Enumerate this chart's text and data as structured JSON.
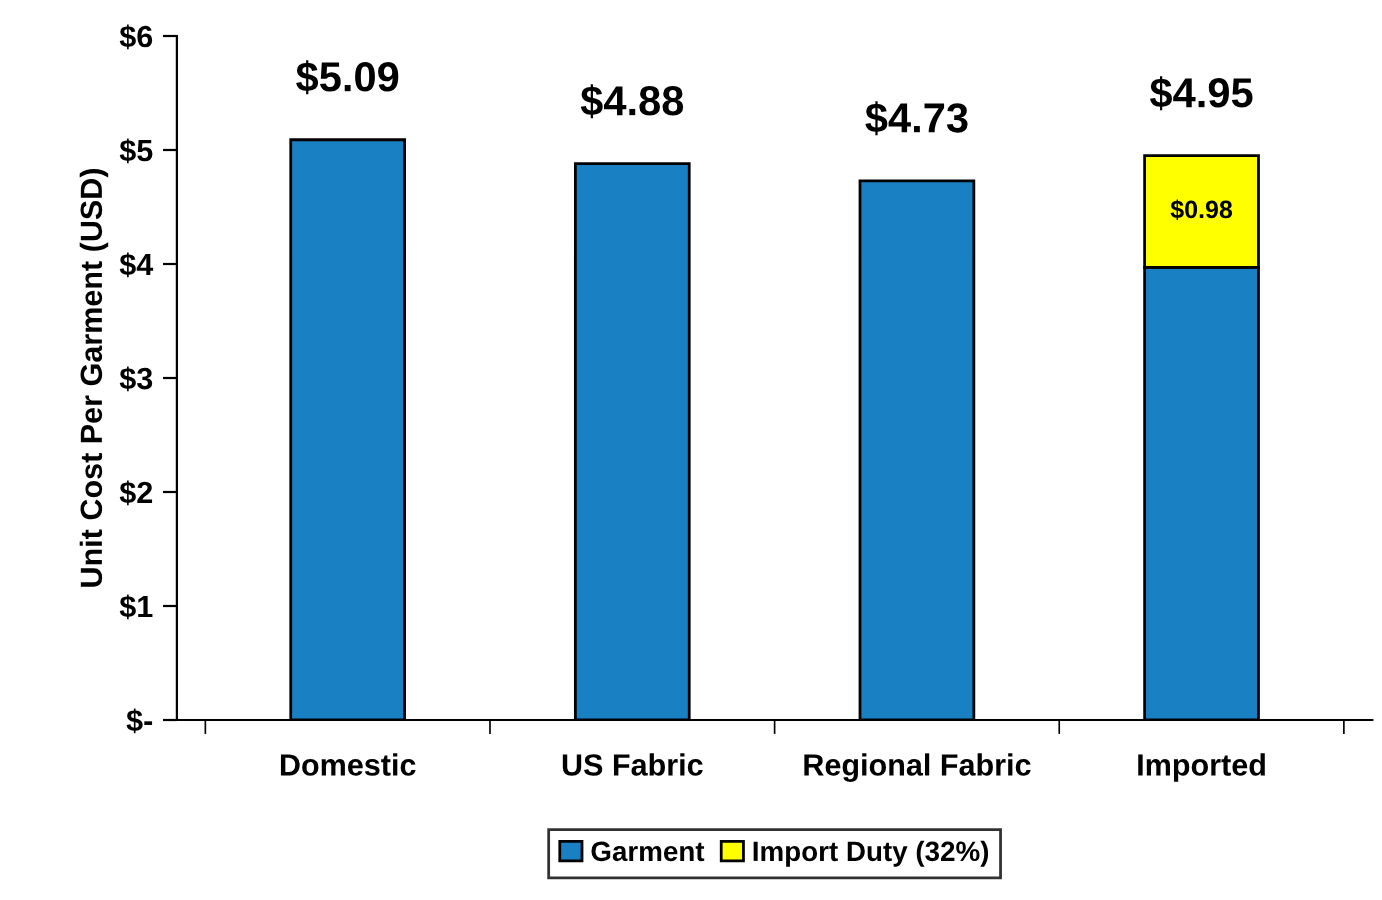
{
  "chart_data": {
    "type": "bar",
    "stacked": true,
    "ylabel": "Unit Cost Per Garment (USD)",
    "categories": [
      "Domestic",
      "US Fabric",
      "Regional Fabric",
      "Imported"
    ],
    "series": [
      {
        "name": "Garment",
        "color": "#1a80c4",
        "values": [
          5.09,
          4.88,
          4.73,
          3.97
        ]
      },
      {
        "name": "Import Duty (32%)",
        "color": "#ffff00",
        "values": [
          null,
          null,
          null,
          0.98
        ],
        "value_labels": [
          null,
          null,
          null,
          "$0.98"
        ]
      }
    ],
    "totals": [
      "$5.09",
      "$4.88",
      "$4.73",
      "$4.95"
    ],
    "ylim": [
      0,
      6
    ],
    "yticks": [
      {
        "value": 0,
        "label": "$-"
      },
      {
        "value": 1,
        "label": "$1"
      },
      {
        "value": 2,
        "label": "$2"
      },
      {
        "value": 3,
        "label": "$3"
      },
      {
        "value": 4,
        "label": "$4"
      },
      {
        "value": 5,
        "label": "$5"
      },
      {
        "value": 6,
        "label": "$6"
      }
    ],
    "grid": false,
    "legend": "bottom"
  }
}
